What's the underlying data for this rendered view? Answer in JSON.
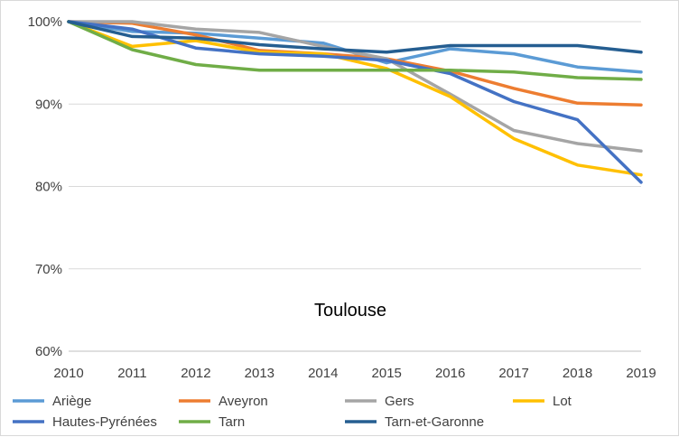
{
  "chart_data": {
    "type": "line",
    "title": "Toulouse",
    "x": [
      "2010",
      "2011",
      "2012",
      "2013",
      "2014",
      "2015",
      "2016",
      "2017",
      "2018",
      "2019"
    ],
    "ylim": [
      60,
      100
    ],
    "yticks": [
      60,
      70,
      80,
      90,
      100
    ],
    "ytick_labels": [
      "60%",
      "70%",
      "80%",
      "90%",
      "100%"
    ],
    "grid": true,
    "legend_position": "bottom",
    "series": [
      {
        "name": "Ariège",
        "color": "#5b9bd5",
        "values": [
          100,
          98.8,
          98.6,
          98.0,
          97.4,
          95.0,
          96.7,
          96.1,
          94.5,
          93.9
        ]
      },
      {
        "name": "Aveyron",
        "color": "#ed7d31",
        "values": [
          100,
          99.8,
          98.4,
          96.5,
          96.1,
          95.5,
          94.0,
          91.9,
          90.1,
          89.9
        ]
      },
      {
        "name": "Gers",
        "color": "#a5a5a5",
        "values": [
          100,
          100,
          99.1,
          98.7,
          97.0,
          95.5,
          91.2,
          86.8,
          85.2,
          84.3
        ]
      },
      {
        "name": "Lot",
        "color": "#ffc000",
        "values": [
          100,
          97.0,
          97.7,
          96.3,
          96.1,
          94.3,
          90.9,
          85.8,
          82.6,
          81.4
        ]
      },
      {
        "name": "Hautes-Pyrénées",
        "color": "#4472c4",
        "values": [
          100,
          99.1,
          96.8,
          96.1,
          95.8,
          95.3,
          93.7,
          90.3,
          88.1,
          80.5
        ]
      },
      {
        "name": "Tarn",
        "color": "#70ad47",
        "values": [
          100,
          96.6,
          94.8,
          94.1,
          94.1,
          94.1,
          94.1,
          93.9,
          93.2,
          93.0
        ]
      },
      {
        "name": "Tarn-et-Garonne",
        "color": "#255e91",
        "values": [
          100,
          98.2,
          98.0,
          97.2,
          96.7,
          96.3,
          97.1,
          97.1,
          97.1,
          96.3
        ]
      }
    ]
  }
}
